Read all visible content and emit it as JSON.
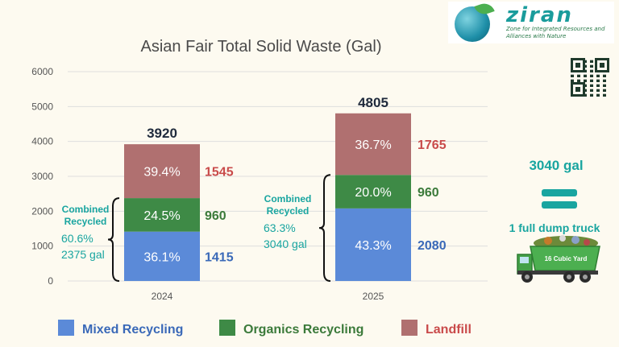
{
  "logo": {
    "name": "ziran",
    "tagline": "Zone for Integrated Resources and Alliances with Nature"
  },
  "qr_icon": "qr-code-icon",
  "chart_data": {
    "type": "bar",
    "stacked": true,
    "title": "Asian Fair Total Solid Waste (Gal)",
    "xlabel": "",
    "ylabel": "",
    "categories": [
      "2024",
      "2025"
    ],
    "ylim": [
      0,
      6000
    ],
    "yticks": [
      0,
      1000,
      2000,
      3000,
      4000,
      5000,
      6000
    ],
    "grid": true,
    "legend_position": "bottom",
    "series": [
      {
        "name": "Mixed Recycling",
        "color": "#5b8ad8",
        "label_color": "#3a69b8",
        "values": [
          1415,
          2080
        ],
        "percent_labels": [
          "36.1%",
          "43.3%"
        ]
      },
      {
        "name": "Organics Recycling",
        "color": "#3e8a46",
        "label_color": "#3b7a3a",
        "values": [
          960,
          960
        ],
        "percent_labels": [
          "24.5%",
          "20.0%"
        ]
      },
      {
        "name": "Landfill",
        "color": "#b07070",
        "label_color": "#c94a4a",
        "values": [
          1545,
          1765
        ],
        "percent_labels": [
          "39.4%",
          "36.7%"
        ]
      }
    ],
    "totals": [
      3920,
      4805
    ],
    "combined": [
      {
        "title_line1": "Combined",
        "title_line2": "Recycled",
        "percent": "60.6%",
        "gallons": "2375 gal"
      },
      {
        "title_line1": "Combined",
        "title_line2": "Recycled",
        "percent": "63.3%",
        "gallons": "3040 gal"
      }
    ]
  },
  "side": {
    "amount": "3040 gal",
    "equivalent": "1 full dump truck",
    "truck_label": "16 Cubic Yard",
    "truck_icon": "dump-truck-icon",
    "accent": "#19a5a0"
  }
}
